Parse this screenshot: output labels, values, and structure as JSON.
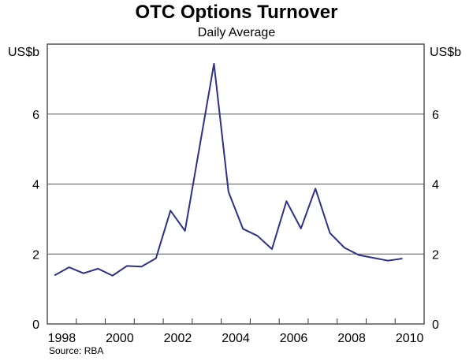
{
  "chart_data": {
    "type": "line",
    "title": "OTC Options Turnover",
    "subtitle": "Daily Average",
    "ylabel_left": "US$b",
    "ylabel_right": "US$b",
    "source": "Source: RBA",
    "xlim": [
      1998,
      2011
    ],
    "ylim": [
      0,
      8
    ],
    "yticks": [
      0,
      2,
      4,
      6
    ],
    "xticks": [
      1998,
      2000,
      2002,
      2004,
      2006,
      2008,
      2010
    ],
    "grid": true,
    "line_color": "#2e3187",
    "series": [
      {
        "x": [
          1998.25,
          1998.75,
          1999.25,
          1999.75,
          2000.25,
          2000.75,
          2001.25,
          2001.75,
          2002.25,
          2002.75,
          2003.25,
          2003.75,
          2004.25,
          2004.75,
          2005.25,
          2005.75,
          2006.25,
          2006.75,
          2007.25,
          2007.75,
          2008.25,
          2008.75,
          2009.25,
          2009.75,
          2010.25
        ],
        "values": [
          1.39,
          1.62,
          1.45,
          1.58,
          1.38,
          1.66,
          1.64,
          1.88,
          3.24,
          2.66,
          5.05,
          7.44,
          3.78,
          2.72,
          2.52,
          2.14,
          3.51,
          2.73,
          3.87,
          2.6,
          2.18,
          1.97,
          1.89,
          1.81,
          1.87
        ]
      }
    ]
  }
}
